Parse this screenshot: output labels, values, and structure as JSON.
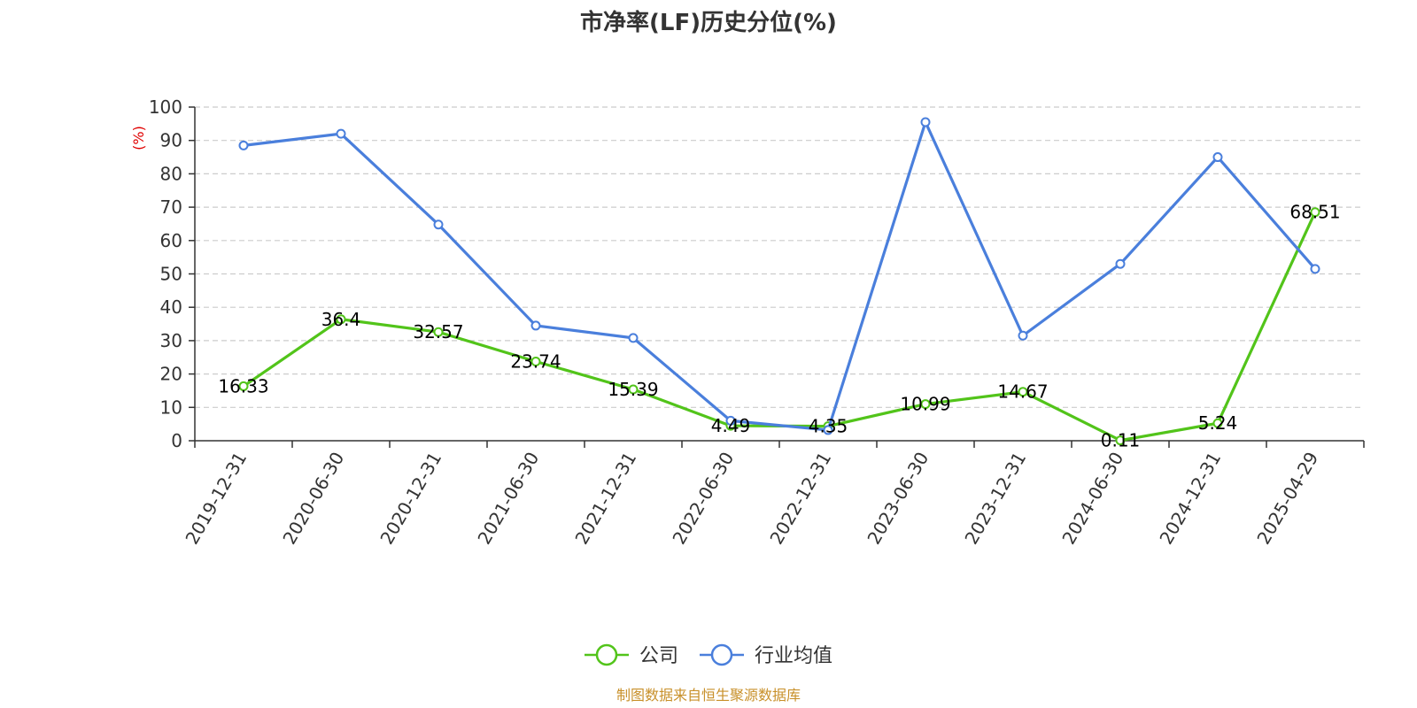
{
  "chart_data": {
    "type": "line",
    "title": "市净率(LF)历史分位(%)",
    "ylabel": "(%)",
    "xlabel": "",
    "ylim": [
      0,
      100
    ],
    "yticks": [
      0,
      10,
      20,
      30,
      40,
      50,
      60,
      70,
      80,
      90,
      100
    ],
    "grid": true,
    "legend_position": "bottom-center",
    "categories": [
      "2019-12-31",
      "2020-06-30",
      "2020-12-31",
      "2021-06-30",
      "2021-12-31",
      "2022-06-30",
      "2022-12-31",
      "2023-06-30",
      "2023-12-31",
      "2024-06-30",
      "2024-12-31",
      "2025-04-29"
    ],
    "series": [
      {
        "name": "公司",
        "color": "#52c41a",
        "values": [
          16.33,
          36.4,
          32.57,
          23.74,
          15.39,
          4.49,
          4.35,
          10.99,
          14.67,
          0.11,
          5.24,
          68.51
        ],
        "labels": [
          "16.33",
          "36.4",
          "32.57",
          "23.74",
          "15.39",
          "4.49",
          "4.35",
          "10.99",
          "14.67",
          "0.11",
          "5.24",
          "68.51"
        ],
        "show_labels": true
      },
      {
        "name": "行业均值",
        "color": "#4a7fdc",
        "values": [
          88.5,
          92.0,
          64.8,
          34.5,
          30.8,
          6.0,
          3.2,
          95.5,
          31.5,
          53.0,
          85.0,
          51.5
        ],
        "show_labels": false
      }
    ],
    "source": "制图数据来自恒生聚源数据库",
    "source_color": "#c8902a",
    "ylabel_color": "#e00000"
  }
}
